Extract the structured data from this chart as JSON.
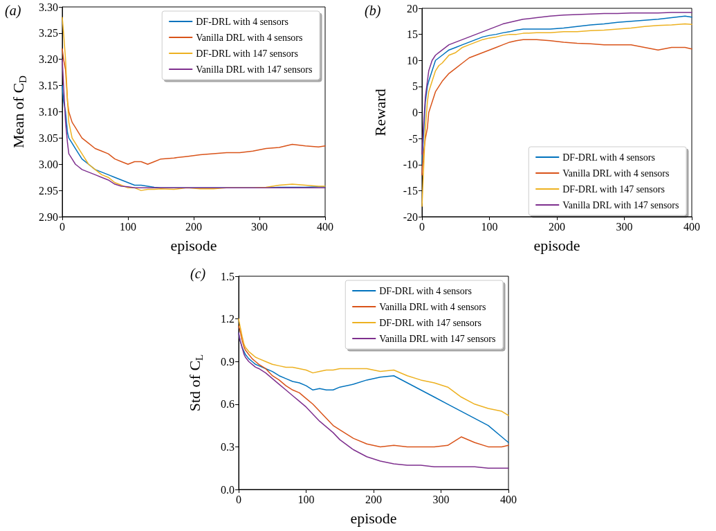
{
  "chart_data": [
    {
      "type": "line",
      "title": "(a)",
      "xlabel": "episode",
      "ylabel": "Mean of C$_{D}$",
      "legend": "top right",
      "grid": false,
      "marker": "none",
      "line_style": "solid",
      "xlim": [
        0,
        400
      ],
      "xticks": [
        0,
        100,
        200,
        300,
        400
      ],
      "ylim": [
        2.9,
        3.3
      ],
      "yticks": [
        {
          "value": 2.9,
          "label": "2.90"
        },
        2.95,
        {
          "value": 3.0,
          "label": "3.00"
        },
        3.05,
        {
          "value": 3.1,
          "label": "3.10"
        },
        3.15,
        {
          "value": 3.2,
          "label": "3.20"
        },
        3.25,
        {
          "value": 3.3,
          "label": "3.30"
        }
      ],
      "x": [
        0,
        2,
        5,
        8,
        10,
        15,
        20,
        25,
        30,
        40,
        50,
        60,
        70,
        80,
        90,
        100,
        110,
        120,
        130,
        140,
        150,
        170,
        190,
        210,
        230,
        250,
        270,
        290,
        310,
        330,
        350,
        370,
        390,
        400
      ],
      "series": [
        {
          "name": "DF-DRL with 4 sensors",
          "color": "#0072bd",
          "values": [
            3.15,
            3.12,
            3.1,
            3.06,
            3.05,
            3.04,
            3.03,
            3.02,
            3.01,
            3.0,
            2.99,
            2.985,
            2.98,
            2.975,
            2.97,
            2.965,
            2.96,
            2.96,
            2.958,
            2.956,
            2.955,
            2.955,
            2.955,
            2.955,
            2.955,
            2.955,
            2.955,
            2.955,
            2.955,
            2.956,
            2.956,
            2.956,
            2.957,
            2.957
          ]
        },
        {
          "name": "Vanilla DRL with 4 sensors",
          "color": "#d95319",
          "values": [
            3.22,
            3.2,
            3.18,
            3.12,
            3.1,
            3.08,
            3.07,
            3.06,
            3.05,
            3.04,
            3.03,
            3.025,
            3.02,
            3.01,
            3.005,
            3.0,
            3.005,
            3.005,
            3.0,
            3.005,
            3.01,
            3.012,
            3.015,
            3.018,
            3.02,
            3.022,
            3.022,
            3.025,
            3.03,
            3.032,
            3.038,
            3.035,
            3.033,
            3.035
          ]
        },
        {
          "name": "DF-DRL with 147 sensors",
          "color": "#edb120",
          "values": [
            3.28,
            3.25,
            3.2,
            3.12,
            3.08,
            3.05,
            3.04,
            3.03,
            3.02,
            3.0,
            2.99,
            2.98,
            2.975,
            2.965,
            2.96,
            2.955,
            2.955,
            2.95,
            2.952,
            2.952,
            2.953,
            2.952,
            2.955,
            2.953,
            2.953,
            2.955,
            2.955,
            2.955,
            2.956,
            2.96,
            2.962,
            2.96,
            2.958,
            2.958
          ]
        },
        {
          "name": "Vanilla DRL with 147 sensors",
          "color": "#7e2f8e",
          "values": [
            3.2,
            3.15,
            3.08,
            3.04,
            3.02,
            3.01,
            3.0,
            2.995,
            2.99,
            2.985,
            2.98,
            2.975,
            2.97,
            2.962,
            2.958,
            2.957,
            2.955,
            2.955,
            2.955,
            2.955,
            2.955,
            2.955,
            2.955,
            2.955,
            2.955,
            2.955,
            2.955,
            2.955,
            2.955,
            2.955,
            2.955,
            2.955,
            2.955,
            2.955
          ]
        }
      ]
    },
    {
      "type": "line",
      "title": "(b)",
      "xlabel": "episode",
      "ylabel": "Reward",
      "legend": "bottom right",
      "grid": false,
      "marker": "none",
      "line_style": "solid",
      "xlim": [
        0,
        400
      ],
      "xticks": [
        0,
        100,
        200,
        300,
        400
      ],
      "ylim": [
        -20,
        20
      ],
      "yticks": [
        -20,
        -15,
        -10,
        -5,
        0,
        5,
        10,
        15,
        20
      ],
      "x": [
        0,
        2,
        5,
        8,
        10,
        15,
        20,
        25,
        30,
        40,
        50,
        60,
        70,
        80,
        90,
        100,
        110,
        120,
        130,
        140,
        150,
        170,
        190,
        210,
        230,
        250,
        270,
        290,
        310,
        330,
        350,
        370,
        390,
        400
      ],
      "series": [
        {
          "name": "DF-DRL with 4 sensors",
          "color": "#0072bd",
          "values": [
            -10,
            -5,
            2,
            5,
            6,
            8,
            10,
            10.5,
            11,
            12,
            12.5,
            13,
            13.5,
            14,
            14.5,
            14.8,
            15,
            15.3,
            15.5,
            15.8,
            16,
            16,
            16,
            16.2,
            16.5,
            16.8,
            17,
            17.3,
            17.5,
            17.7,
            17.9,
            18.2,
            18.5,
            18.3
          ]
        },
        {
          "name": "Vanilla DRL with 4 sensors",
          "color": "#d95319",
          "values": [
            -12,
            -8,
            -5,
            -3,
            0,
            2,
            4,
            5,
            6,
            7.5,
            8.5,
            9.5,
            10.5,
            11,
            11.5,
            12,
            12.5,
            13,
            13.5,
            13.8,
            14,
            14,
            13.8,
            13.5,
            13.3,
            13.2,
            13,
            13,
            13,
            12.5,
            12,
            12.5,
            12.5,
            12.2
          ]
        },
        {
          "name": "DF-DRL with 147 sensors",
          "color": "#edb120",
          "values": [
            -18,
            -12,
            -3,
            2,
            4,
            6,
            8,
            9,
            9.5,
            11,
            11.5,
            12.5,
            13,
            13.5,
            14,
            14.3,
            14.5,
            14.8,
            15,
            15,
            15.2,
            15.3,
            15.3,
            15.5,
            15.5,
            15.7,
            15.8,
            16,
            16.2,
            16.5,
            16.7,
            16.8,
            17,
            16.9
          ]
        },
        {
          "name": "Vanilla DRL with 147 sensors",
          "color": "#7e2f8e",
          "values": [
            -8,
            -3,
            3,
            6,
            8,
            10,
            11,
            11.5,
            12,
            13,
            13.5,
            14,
            14.5,
            15,
            15.5,
            16,
            16.5,
            17,
            17.3,
            17.6,
            17.9,
            18.2,
            18.5,
            18.7,
            18.8,
            18.9,
            19,
            19,
            19.1,
            19.1,
            19.1,
            19.2,
            19.2,
            19.2
          ]
        }
      ]
    },
    {
      "type": "line",
      "title": "(c)",
      "xlabel": "episode",
      "ylabel": "Std of C$_{L}$",
      "legend": "top right",
      "grid": false,
      "marker": "none",
      "line_style": "solid",
      "xlim": [
        0,
        400
      ],
      "xticks": [
        0,
        100,
        200,
        300,
        400
      ],
      "ylim": [
        0,
        1.5
      ],
      "yticks": [
        {
          "value": 0,
          "label": "0.0"
        },
        0.3,
        0.6,
        0.9,
        1.2,
        1.5
      ],
      "x": [
        0,
        2,
        5,
        8,
        10,
        15,
        20,
        25,
        30,
        40,
        50,
        60,
        70,
        80,
        90,
        100,
        110,
        120,
        130,
        140,
        150,
        170,
        190,
        210,
        230,
        250,
        270,
        290,
        310,
        330,
        350,
        370,
        390,
        400
      ],
      "series": [
        {
          "name": "DF-DRL with 4 sensors",
          "color": "#0072bd",
          "values": [
            1.1,
            1.05,
            1.0,
            0.97,
            0.95,
            0.92,
            0.9,
            0.88,
            0.87,
            0.85,
            0.83,
            0.8,
            0.78,
            0.76,
            0.75,
            0.73,
            0.7,
            0.71,
            0.7,
            0.7,
            0.72,
            0.74,
            0.77,
            0.79,
            0.8,
            0.75,
            0.7,
            0.65,
            0.6,
            0.55,
            0.5,
            0.45,
            0.37,
            0.33
          ]
        },
        {
          "name": "Vanilla DRL with 4 sensors",
          "color": "#d95319",
          "values": [
            1.15,
            1.12,
            1.05,
            1.0,
            0.98,
            0.95,
            0.92,
            0.9,
            0.88,
            0.85,
            0.8,
            0.77,
            0.73,
            0.7,
            0.68,
            0.64,
            0.6,
            0.55,
            0.5,
            0.45,
            0.42,
            0.36,
            0.32,
            0.3,
            0.31,
            0.3,
            0.3,
            0.3,
            0.31,
            0.37,
            0.33,
            0.3,
            0.3,
            0.31
          ]
        },
        {
          "name": "DF-DRL with 147 sensors",
          "color": "#edb120",
          "values": [
            1.2,
            1.15,
            1.08,
            1.02,
            1.0,
            0.97,
            0.95,
            0.93,
            0.92,
            0.9,
            0.88,
            0.87,
            0.86,
            0.86,
            0.85,
            0.84,
            0.82,
            0.83,
            0.84,
            0.84,
            0.85,
            0.85,
            0.85,
            0.83,
            0.84,
            0.8,
            0.77,
            0.75,
            0.72,
            0.65,
            0.6,
            0.57,
            0.55,
            0.52
          ]
        },
        {
          "name": "Vanilla DRL with 147 sensors",
          "color": "#7e2f8e",
          "values": [
            1.1,
            1.05,
            1.0,
            0.95,
            0.93,
            0.9,
            0.88,
            0.86,
            0.85,
            0.82,
            0.78,
            0.74,
            0.7,
            0.66,
            0.62,
            0.58,
            0.53,
            0.48,
            0.44,
            0.4,
            0.35,
            0.28,
            0.23,
            0.2,
            0.18,
            0.17,
            0.17,
            0.16,
            0.16,
            0.16,
            0.16,
            0.15,
            0.15,
            0.15
          ]
        }
      ]
    }
  ]
}
